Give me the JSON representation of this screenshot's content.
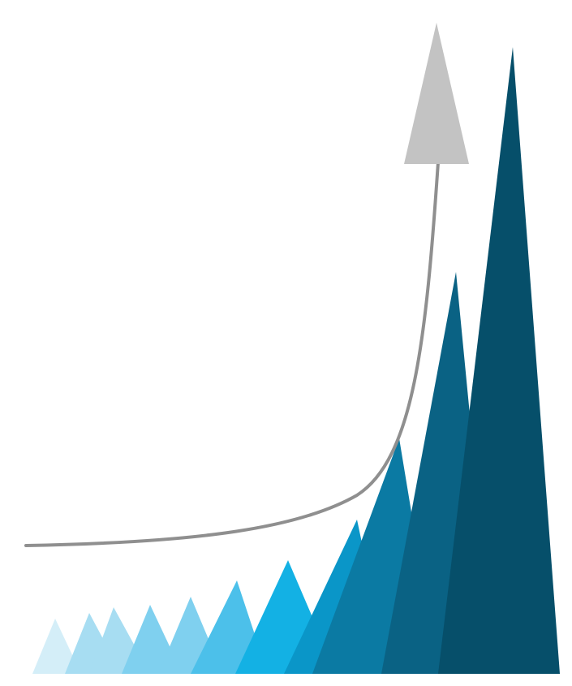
{
  "illustration": {
    "subject": "exponential-growth-icon",
    "palette": {
      "background": "#ffffff",
      "curve": "#8f8f8f",
      "arrowhead": "#c3c3c3",
      "peaks": [
        "#d4eef8",
        "#a7ddf2",
        "#7fd0ef",
        "#4cc0ea",
        "#13b1e4",
        "#0a96c8",
        "#0b7aa3",
        "#0a6284",
        "#064f6a"
      ]
    }
  }
}
